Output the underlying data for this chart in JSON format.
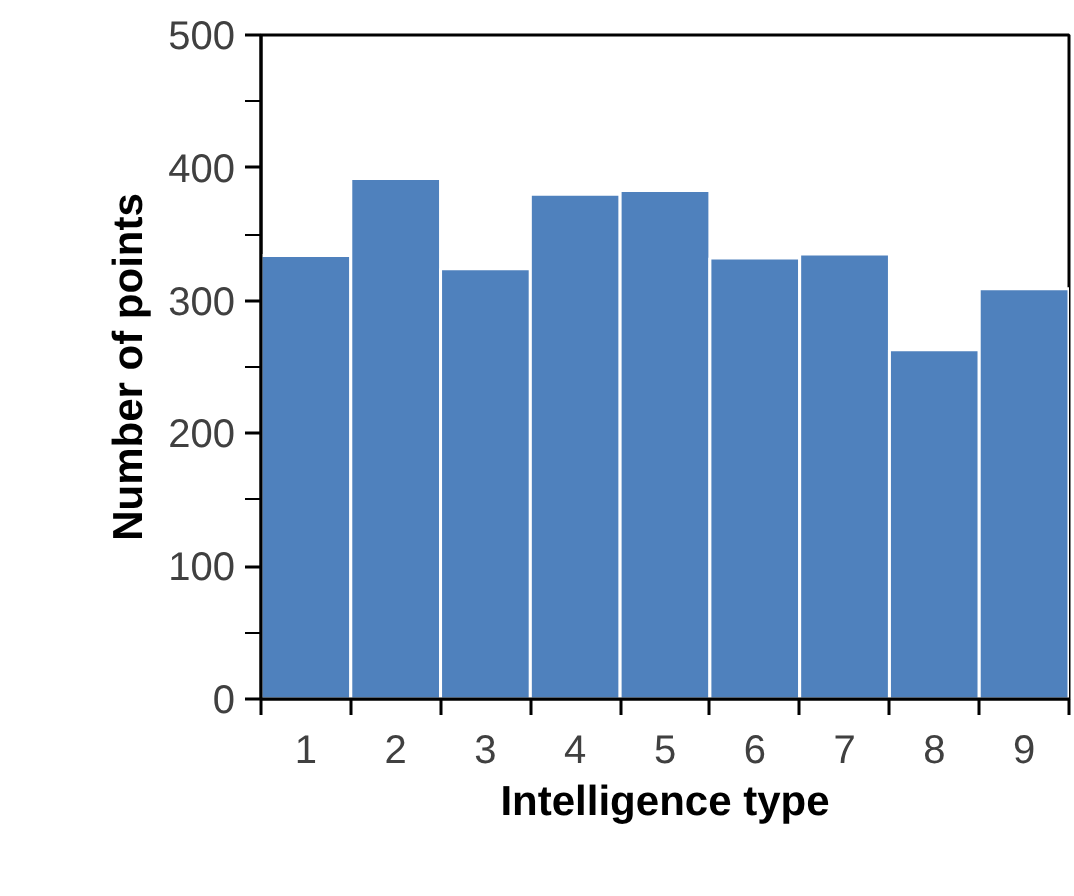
{
  "chart_data": {
    "type": "bar",
    "xlabel": "Intelligence type",
    "ylabel": "Number of points",
    "categories": [
      "1",
      "2",
      "3",
      "4",
      "5",
      "6",
      "7",
      "8",
      "9"
    ],
    "values": [
      334,
      392,
      324,
      380,
      383,
      332,
      335,
      263,
      309
    ],
    "color": "#4f81bd",
    "ylim": [
      0,
      500
    ],
    "yticks": [
      0,
      {
        "value": 50,
        "label": null
      },
      100,
      {
        "value": 150,
        "label": null
      },
      200,
      {
        "value": 250,
        "label": null
      },
      300,
      {
        "value": 350,
        "label": null
      },
      400,
      {
        "value": 450,
        "label": null
      },
      500
    ],
    "grid": false
  }
}
